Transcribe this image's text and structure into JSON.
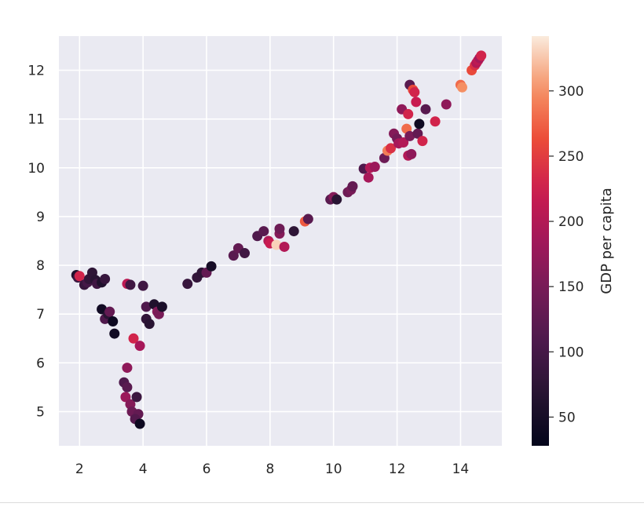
{
  "chart_data": {
    "type": "scatter",
    "title": "",
    "xlabel": "",
    "ylabel": "",
    "xlim": [
      1.35,
      15.3
    ],
    "ylim": [
      4.3,
      12.7
    ],
    "grid": true,
    "x_ticks": [
      2,
      4,
      6,
      8,
      10,
      12,
      14
    ],
    "y_ticks": [
      5,
      6,
      7,
      8,
      9,
      10,
      11,
      12
    ],
    "colorbar": {
      "label": "GDP per capita",
      "range": [
        28,
        342
      ],
      "ticks": [
        50,
        100,
        150,
        200,
        250,
        300
      ],
      "colormap": "rocket"
    },
    "points": [
      {
        "x": 1.9,
        "y": 7.8,
        "v": 60
      },
      {
        "x": 1.95,
        "y": 7.75,
        "v": 90
      },
      {
        "x": 2.0,
        "y": 7.78,
        "v": 230
      },
      {
        "x": 2.15,
        "y": 7.6,
        "v": 85
      },
      {
        "x": 2.25,
        "y": 7.65,
        "v": 100
      },
      {
        "x": 2.3,
        "y": 7.72,
        "v": 80
      },
      {
        "x": 2.4,
        "y": 7.85,
        "v": 75
      },
      {
        "x": 2.5,
        "y": 7.7,
        "v": 70
      },
      {
        "x": 2.55,
        "y": 7.62,
        "v": 95
      },
      {
        "x": 2.7,
        "y": 7.65,
        "v": 60
      },
      {
        "x": 2.8,
        "y": 7.72,
        "v": 85
      },
      {
        "x": 2.7,
        "y": 7.1,
        "v": 45
      },
      {
        "x": 2.8,
        "y": 6.9,
        "v": 110
      },
      {
        "x": 2.9,
        "y": 7.0,
        "v": 70
      },
      {
        "x": 2.95,
        "y": 7.05,
        "v": 130
      },
      {
        "x": 3.05,
        "y": 6.85,
        "v": 40
      },
      {
        "x": 3.1,
        "y": 6.6,
        "v": 45
      },
      {
        "x": 3.5,
        "y": 7.62,
        "v": 210
      },
      {
        "x": 3.6,
        "y": 7.6,
        "v": 95
      },
      {
        "x": 3.7,
        "y": 6.5,
        "v": 230
      },
      {
        "x": 3.9,
        "y": 6.35,
        "v": 190
      },
      {
        "x": 4.0,
        "y": 7.58,
        "v": 95
      },
      {
        "x": 4.1,
        "y": 7.15,
        "v": 110
      },
      {
        "x": 4.1,
        "y": 6.9,
        "v": 80
      },
      {
        "x": 4.2,
        "y": 6.8,
        "v": 70
      },
      {
        "x": 4.35,
        "y": 7.2,
        "v": 60
      },
      {
        "x": 4.45,
        "y": 7.05,
        "v": 160
      },
      {
        "x": 4.5,
        "y": 7.0,
        "v": 150
      },
      {
        "x": 4.6,
        "y": 7.15,
        "v": 55
      },
      {
        "x": 3.5,
        "y": 5.9,
        "v": 170
      },
      {
        "x": 3.4,
        "y": 5.6,
        "v": 110
      },
      {
        "x": 3.5,
        "y": 5.5,
        "v": 120
      },
      {
        "x": 3.45,
        "y": 5.3,
        "v": 180
      },
      {
        "x": 3.6,
        "y": 5.15,
        "v": 160
      },
      {
        "x": 3.65,
        "y": 5.0,
        "v": 140
      },
      {
        "x": 3.8,
        "y": 5.3,
        "v": 90
      },
      {
        "x": 3.85,
        "y": 4.95,
        "v": 130
      },
      {
        "x": 3.75,
        "y": 4.85,
        "v": 115
      },
      {
        "x": 3.9,
        "y": 4.75,
        "v": 40
      },
      {
        "x": 5.4,
        "y": 7.62,
        "v": 85
      },
      {
        "x": 5.7,
        "y": 7.75,
        "v": 80
      },
      {
        "x": 5.85,
        "y": 7.85,
        "v": 75
      },
      {
        "x": 6.0,
        "y": 7.85,
        "v": 130
      },
      {
        "x": 6.15,
        "y": 7.98,
        "v": 50
      },
      {
        "x": 6.85,
        "y": 8.2,
        "v": 120
      },
      {
        "x": 7.0,
        "y": 8.35,
        "v": 130
      },
      {
        "x": 7.2,
        "y": 8.25,
        "v": 95
      },
      {
        "x": 7.6,
        "y": 8.6,
        "v": 110
      },
      {
        "x": 7.8,
        "y": 8.7,
        "v": 120
      },
      {
        "x": 7.95,
        "y": 8.5,
        "v": 200
      },
      {
        "x": 8.0,
        "y": 8.45,
        "v": 220
      },
      {
        "x": 8.2,
        "y": 8.42,
        "v": 330
      },
      {
        "x": 8.3,
        "y": 8.65,
        "v": 160
      },
      {
        "x": 8.3,
        "y": 8.75,
        "v": 140
      },
      {
        "x": 8.45,
        "y": 8.38,
        "v": 200
      },
      {
        "x": 8.75,
        "y": 8.7,
        "v": 75
      },
      {
        "x": 9.1,
        "y": 8.9,
        "v": 270
      },
      {
        "x": 9.2,
        "y": 8.95,
        "v": 120
      },
      {
        "x": 9.9,
        "y": 9.35,
        "v": 120
      },
      {
        "x": 10.0,
        "y": 9.4,
        "v": 160
      },
      {
        "x": 10.1,
        "y": 9.35,
        "v": 70
      },
      {
        "x": 10.45,
        "y": 9.5,
        "v": 140
      },
      {
        "x": 10.55,
        "y": 9.55,
        "v": 150
      },
      {
        "x": 10.6,
        "y": 9.62,
        "v": 130
      },
      {
        "x": 10.95,
        "y": 9.98,
        "v": 110
      },
      {
        "x": 11.1,
        "y": 9.8,
        "v": 190
      },
      {
        "x": 11.15,
        "y": 10.0,
        "v": 200
      },
      {
        "x": 11.3,
        "y": 10.02,
        "v": 180
      },
      {
        "x": 11.6,
        "y": 10.2,
        "v": 140
      },
      {
        "x": 11.7,
        "y": 10.35,
        "v": 290
      },
      {
        "x": 11.8,
        "y": 10.4,
        "v": 240
      },
      {
        "x": 11.9,
        "y": 10.7,
        "v": 160
      },
      {
        "x": 12.0,
        "y": 10.6,
        "v": 145
      },
      {
        "x": 12.05,
        "y": 10.5,
        "v": 190
      },
      {
        "x": 12.15,
        "y": 11.2,
        "v": 170
      },
      {
        "x": 12.2,
        "y": 10.52,
        "v": 200
      },
      {
        "x": 12.3,
        "y": 10.8,
        "v": 280
      },
      {
        "x": 12.35,
        "y": 11.1,
        "v": 230
      },
      {
        "x": 12.35,
        "y": 10.25,
        "v": 200
      },
      {
        "x": 12.4,
        "y": 11.7,
        "v": 120
      },
      {
        "x": 12.4,
        "y": 10.65,
        "v": 150
      },
      {
        "x": 12.45,
        "y": 10.28,
        "v": 170
      },
      {
        "x": 12.5,
        "y": 11.6,
        "v": 260
      },
      {
        "x": 12.55,
        "y": 11.55,
        "v": 230
      },
      {
        "x": 12.6,
        "y": 11.35,
        "v": 220
      },
      {
        "x": 12.65,
        "y": 10.7,
        "v": 130
      },
      {
        "x": 12.7,
        "y": 10.9,
        "v": 40
      },
      {
        "x": 12.8,
        "y": 10.55,
        "v": 230
      },
      {
        "x": 12.9,
        "y": 11.2,
        "v": 120
      },
      {
        "x": 13.2,
        "y": 10.95,
        "v": 230
      },
      {
        "x": 13.55,
        "y": 11.3,
        "v": 170
      },
      {
        "x": 14.0,
        "y": 11.7,
        "v": 280
      },
      {
        "x": 14.05,
        "y": 11.65,
        "v": 300
      },
      {
        "x": 14.35,
        "y": 12.0,
        "v": 260
      },
      {
        "x": 14.45,
        "y": 12.1,
        "v": 240
      },
      {
        "x": 14.5,
        "y": 12.15,
        "v": 200
      },
      {
        "x": 14.55,
        "y": 12.2,
        "v": 210
      },
      {
        "x": 14.6,
        "y": 12.25,
        "v": 190
      },
      {
        "x": 14.65,
        "y": 12.3,
        "v": 230
      }
    ]
  }
}
